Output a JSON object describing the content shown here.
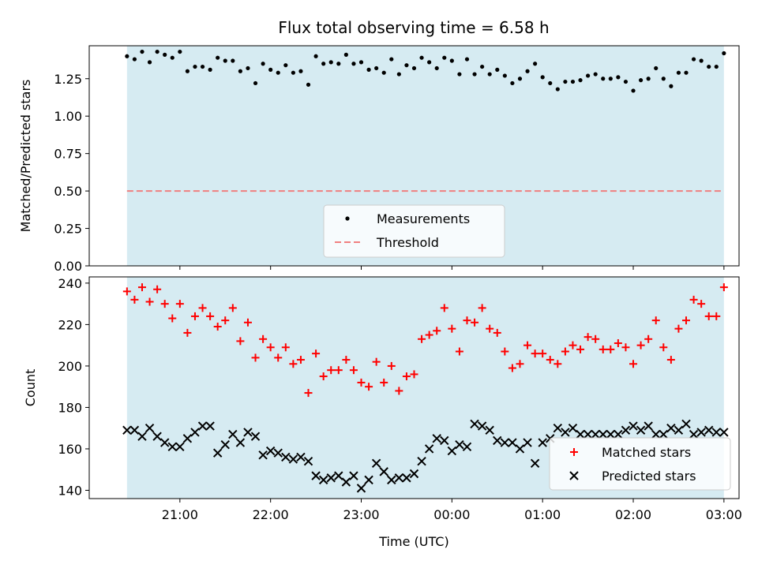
{
  "title": "Flux total observing time = 6.58 h",
  "colors": {
    "observing_window": "#add8e6",
    "measurements": "#000000",
    "threshold": "#f08080",
    "matched": "#ff0000",
    "predicted": "#000000"
  },
  "chart_data": [
    {
      "type": "scatter",
      "panel": "top",
      "ylabel": "Matched/Predicted stars",
      "ylim": [
        0,
        1.47
      ],
      "yticks": [
        "0.00",
        "0.25",
        "0.50",
        "0.75",
        "1.00",
        "1.25"
      ],
      "ytick_values": [
        0,
        0.25,
        0.5,
        0.75,
        1.0,
        1.25
      ],
      "xlim": [
        "20:00",
        "03:10"
      ],
      "observing_window": [
        "20:25",
        "03:00"
      ],
      "legend": {
        "position": "bottom-center",
        "entries": [
          "Measurements",
          "Threshold"
        ]
      },
      "threshold": 0.5,
      "series": [
        {
          "name": "Measurements",
          "x": [
            "20:25",
            "20:30",
            "20:35",
            "20:40",
            "20:45",
            "20:50",
            "20:55",
            "21:00",
            "21:05",
            "21:10",
            "21:15",
            "21:20",
            "21:25",
            "21:30",
            "21:35",
            "21:40",
            "21:45",
            "21:50",
            "21:55",
            "22:00",
            "22:05",
            "22:10",
            "22:15",
            "22:20",
            "22:25",
            "22:30",
            "22:35",
            "22:40",
            "22:45",
            "22:50",
            "22:55",
            "23:00",
            "23:05",
            "23:10",
            "23:15",
            "23:20",
            "23:25",
            "23:30",
            "23:35",
            "23:40",
            "23:45",
            "23:50",
            "23:55",
            "00:00",
            "00:05",
            "00:10",
            "00:15",
            "00:20",
            "00:25",
            "00:30",
            "00:35",
            "00:40",
            "00:45",
            "00:50",
            "00:55",
            "01:00",
            "01:05",
            "01:10",
            "01:15",
            "01:20",
            "01:25",
            "01:30",
            "01:35",
            "01:40",
            "01:45",
            "01:50",
            "01:55",
            "02:00",
            "02:05",
            "02:10",
            "02:15",
            "02:20",
            "02:25",
            "02:30",
            "02:35",
            "02:40",
            "02:45",
            "02:50",
            "02:55",
            "03:00"
          ],
          "y": [
            1.4,
            1.38,
            1.43,
            1.36,
            1.43,
            1.41,
            1.39,
            1.43,
            1.3,
            1.33,
            1.33,
            1.31,
            1.39,
            1.37,
            1.37,
            1.3,
            1.32,
            1.22,
            1.35,
            1.31,
            1.29,
            1.34,
            1.29,
            1.3,
            1.21,
            1.4,
            1.35,
            1.36,
            1.35,
            1.41,
            1.35,
            1.36,
            1.31,
            1.32,
            1.29,
            1.38,
            1.28,
            1.34,
            1.32,
            1.39,
            1.36,
            1.32,
            1.39,
            1.37,
            1.28,
            1.38,
            1.28,
            1.33,
            1.28,
            1.31,
            1.27,
            1.22,
            1.25,
            1.3,
            1.35,
            1.26,
            1.22,
            1.18,
            1.23,
            1.23,
            1.24,
            1.27,
            1.28,
            1.25,
            1.25,
            1.26,
            1.23,
            1.17,
            1.24,
            1.25,
            1.32,
            1.25,
            1.2,
            1.29,
            1.29,
            1.38,
            1.37,
            1.33,
            1.33,
            1.42
          ]
        }
      ]
    },
    {
      "type": "scatter",
      "panel": "bottom",
      "xlabel": "Time (UTC)",
      "ylabel": "Count",
      "ylim": [
        136,
        243
      ],
      "yticks": [
        "140",
        "160",
        "180",
        "200",
        "220",
        "240"
      ],
      "ytick_values": [
        140,
        160,
        180,
        200,
        220,
        240
      ],
      "xlim": [
        "20:00",
        "03:10"
      ],
      "xticks": [
        "21:00",
        "22:00",
        "23:00",
        "00:00",
        "01:00",
        "02:00",
        "03:00"
      ],
      "observing_window": [
        "20:25",
        "03:00"
      ],
      "legend": {
        "position": "bottom-right",
        "entries": [
          "Matched stars",
          "Predicted stars"
        ]
      },
      "series": [
        {
          "name": "Matched stars",
          "marker": "plus",
          "x": [
            "20:25",
            "20:30",
            "20:35",
            "20:40",
            "20:45",
            "20:50",
            "20:55",
            "21:00",
            "21:05",
            "21:10",
            "21:15",
            "21:20",
            "21:25",
            "21:30",
            "21:35",
            "21:40",
            "21:45",
            "21:50",
            "21:55",
            "22:00",
            "22:05",
            "22:10",
            "22:15",
            "22:20",
            "22:25",
            "22:30",
            "22:35",
            "22:40",
            "22:45",
            "22:50",
            "22:55",
            "23:00",
            "23:05",
            "23:10",
            "23:15",
            "23:20",
            "23:25",
            "23:30",
            "23:35",
            "23:40",
            "23:45",
            "23:50",
            "23:55",
            "00:00",
            "00:05",
            "00:10",
            "00:15",
            "00:20",
            "00:25",
            "00:30",
            "00:35",
            "00:40",
            "00:45",
            "00:50",
            "00:55",
            "01:00",
            "01:05",
            "01:10",
            "01:15",
            "01:20",
            "01:25",
            "01:30",
            "01:35",
            "01:40",
            "01:45",
            "01:50",
            "01:55",
            "02:00",
            "02:05",
            "02:10",
            "02:15",
            "02:20",
            "02:25",
            "02:30",
            "02:35",
            "02:40",
            "02:45",
            "02:50",
            "02:55",
            "03:00"
          ],
          "y": [
            236,
            232,
            238,
            231,
            237,
            230,
            223,
            230,
            216,
            224,
            228,
            224,
            219,
            222,
            228,
            212,
            221,
            204,
            213,
            209,
            204,
            209,
            201,
            203,
            187,
            206,
            195,
            198,
            198,
            203,
            198,
            192,
            190,
            202,
            192,
            200,
            188,
            195,
            196,
            213,
            215,
            217,
            228,
            218,
            207,
            222,
            221,
            228,
            218,
            216,
            207,
            199,
            201,
            210,
            206,
            206,
            203,
            201,
            207,
            210,
            208,
            214,
            213,
            208,
            208,
            211,
            209,
            201,
            210,
            213,
            222,
            209,
            203,
            218,
            222,
            232,
            230,
            224,
            224,
            238
          ]
        },
        {
          "name": "Predicted stars",
          "marker": "x",
          "x": [
            "20:25",
            "20:30",
            "20:35",
            "20:40",
            "20:45",
            "20:50",
            "20:55",
            "21:00",
            "21:05",
            "21:10",
            "21:15",
            "21:20",
            "21:25",
            "21:30",
            "21:35",
            "21:40",
            "21:45",
            "21:50",
            "21:55",
            "22:00",
            "22:05",
            "22:10",
            "22:15",
            "22:20",
            "22:25",
            "22:30",
            "22:35",
            "22:40",
            "22:45",
            "22:50",
            "22:55",
            "23:00",
            "23:05",
            "23:10",
            "23:15",
            "23:20",
            "23:25",
            "23:30",
            "23:35",
            "23:40",
            "23:45",
            "23:50",
            "23:55",
            "00:00",
            "00:05",
            "00:10",
            "00:15",
            "00:20",
            "00:25",
            "00:30",
            "00:35",
            "00:40",
            "00:45",
            "00:50",
            "00:55",
            "01:00",
            "01:05",
            "01:10",
            "01:15",
            "01:20",
            "01:25",
            "01:30",
            "01:35",
            "01:40",
            "01:45",
            "01:50",
            "01:55",
            "02:00",
            "02:05",
            "02:10",
            "02:15",
            "02:20",
            "02:25",
            "02:30",
            "02:35",
            "02:40",
            "02:45",
            "02:50",
            "02:55",
            "03:00"
          ],
          "y": [
            169,
            169,
            166,
            170,
            166,
            163,
            161,
            161,
            165,
            168,
            171,
            171,
            158,
            162,
            167,
            163,
            168,
            166,
            157,
            159,
            158,
            156,
            155,
            156,
            154,
            147,
            145,
            146,
            147,
            144,
            147,
            141,
            145,
            153,
            149,
            145,
            146,
            146,
            148,
            154,
            160,
            165,
            164,
            159,
            162,
            161,
            172,
            171,
            169,
            164,
            163,
            163,
            160,
            163,
            153,
            163,
            165,
            170,
            168,
            170,
            167,
            167,
            167,
            167,
            167,
            167,
            169,
            171,
            169,
            171,
            167,
            167,
            170,
            169,
            172,
            167,
            168,
            169,
            168,
            168
          ]
        }
      ]
    }
  ]
}
